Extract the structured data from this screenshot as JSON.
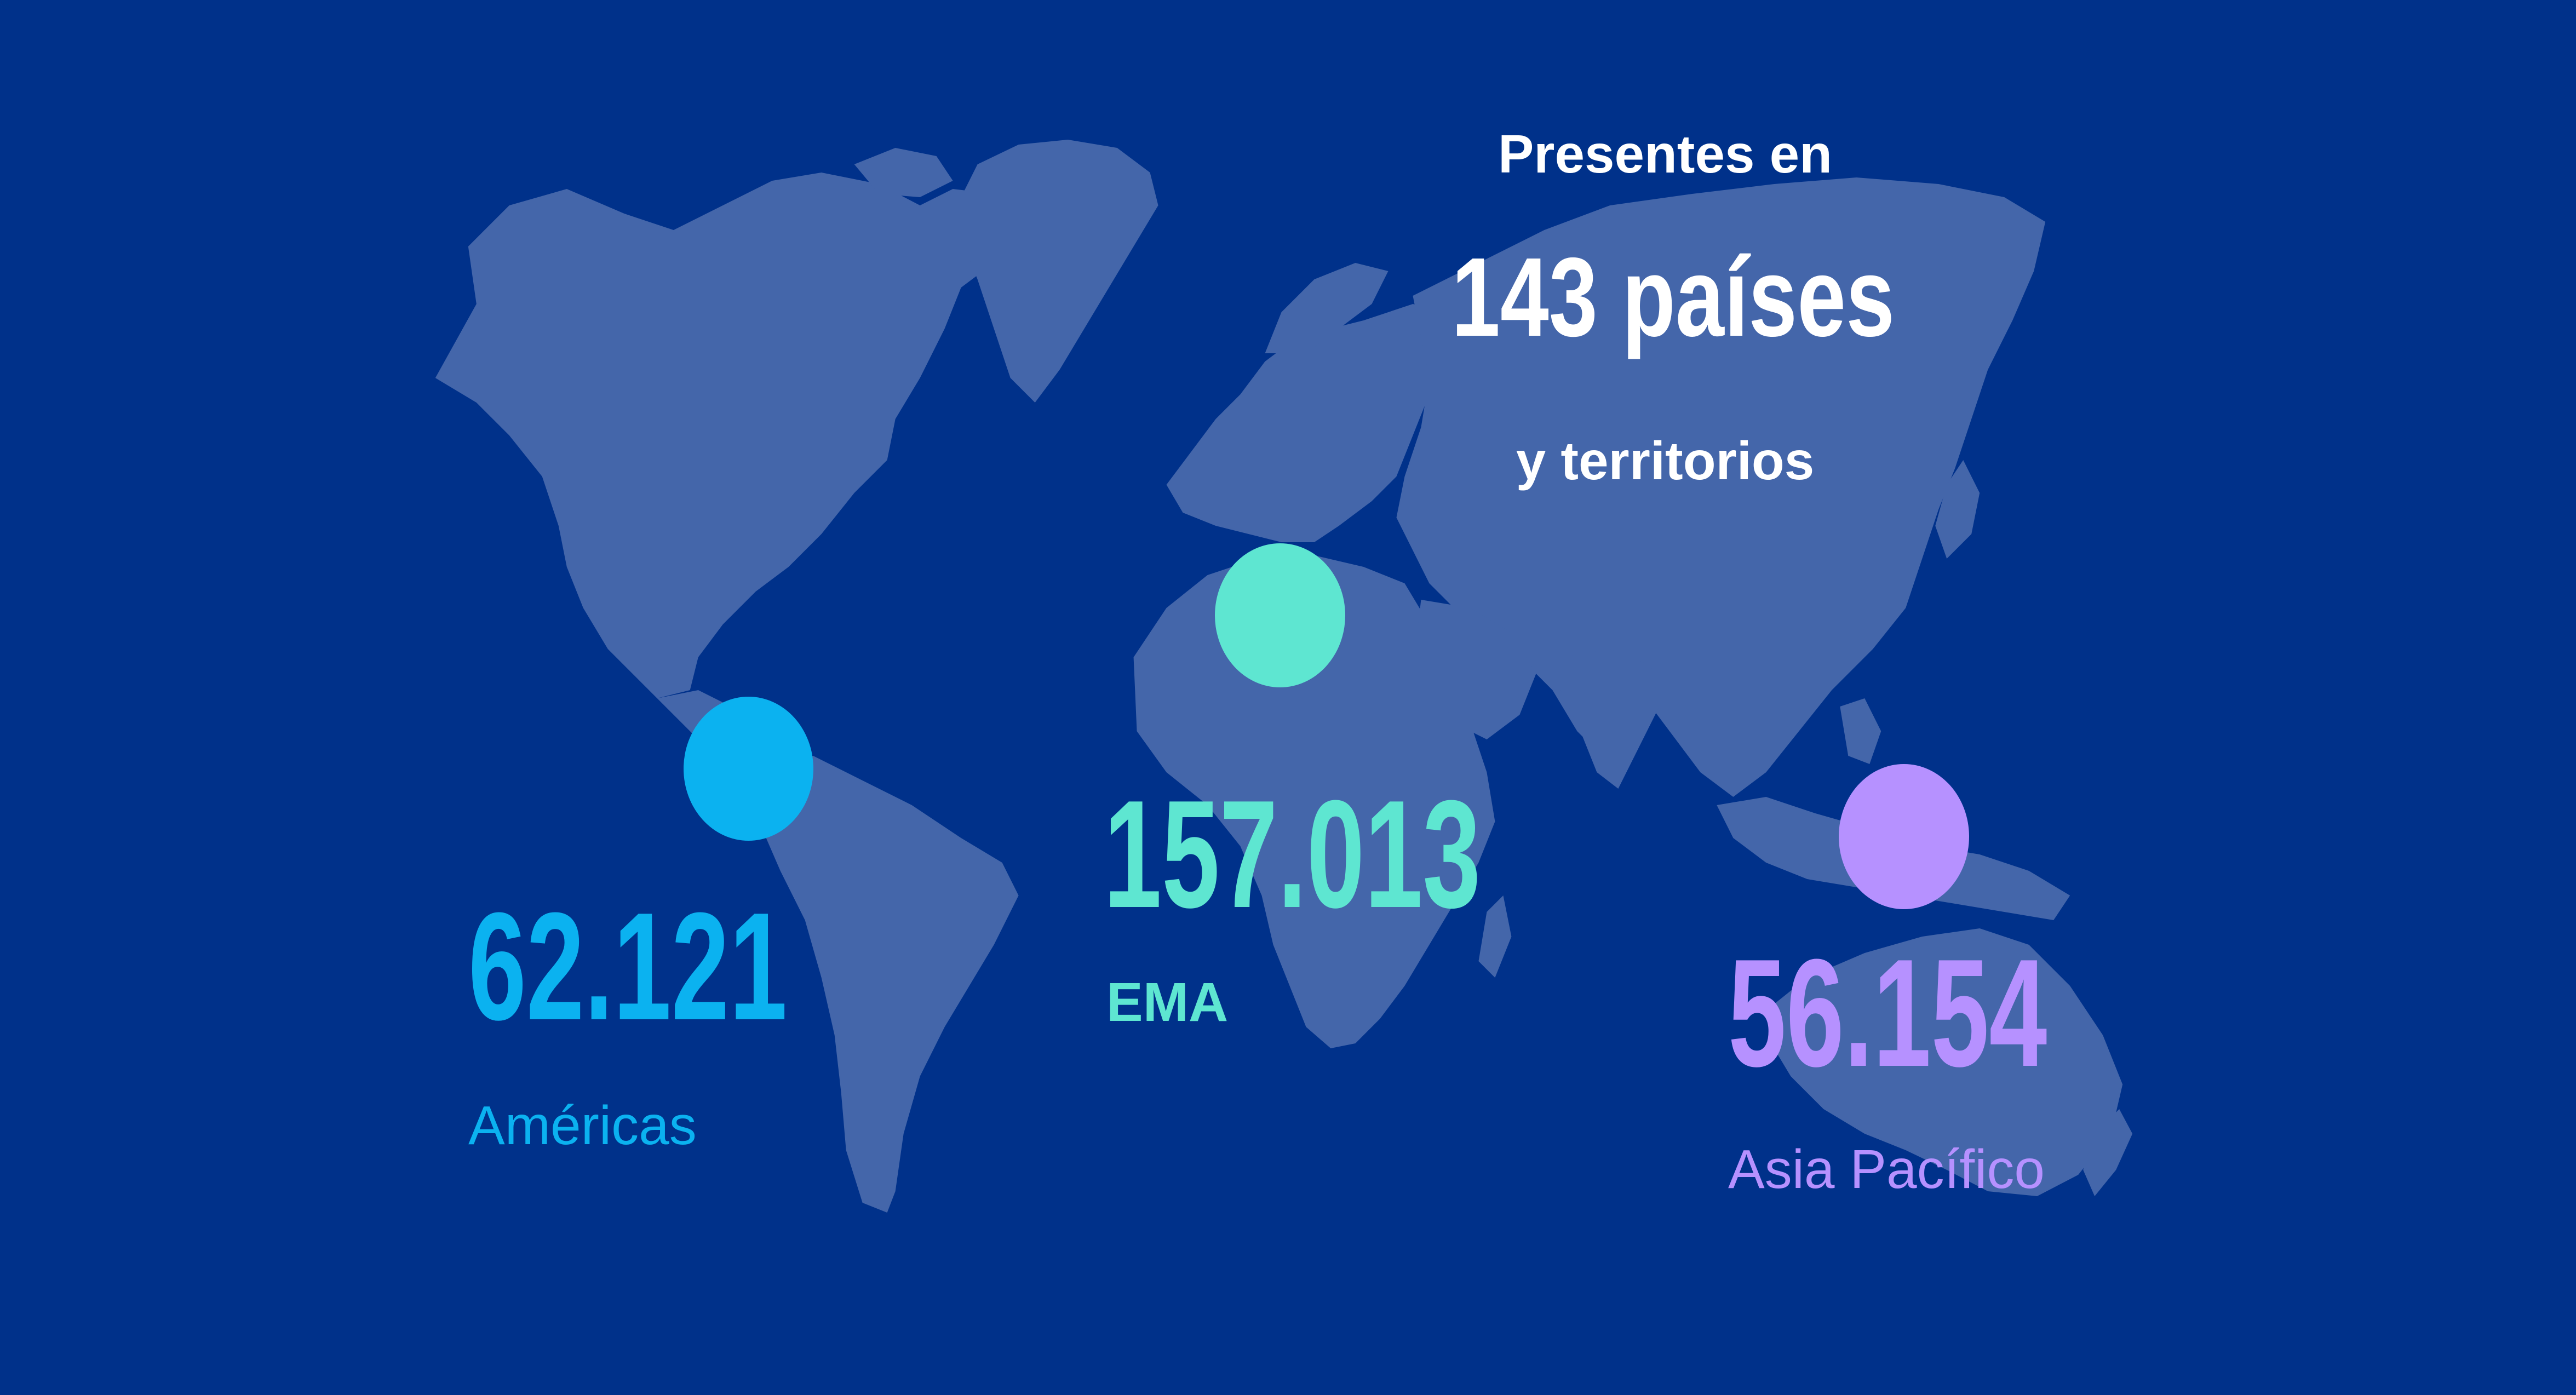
{
  "headline": {
    "prefix": "Presentes en",
    "count": "143 países",
    "suffix": "y territorios"
  },
  "colors": {
    "background": "#00318a",
    "land": "#4466aa",
    "americas": "#0bb2f0",
    "ema": "#5ee6d1",
    "asia_pacific": "#b691ff",
    "headline": "#ffffff"
  },
  "regions": {
    "americas": {
      "value": "62.121",
      "label": "Américas"
    },
    "ema": {
      "value": "157.013",
      "label": "EMA"
    },
    "asia_pacific": {
      "value": "56.154",
      "label": "Asia Pacífico"
    }
  }
}
